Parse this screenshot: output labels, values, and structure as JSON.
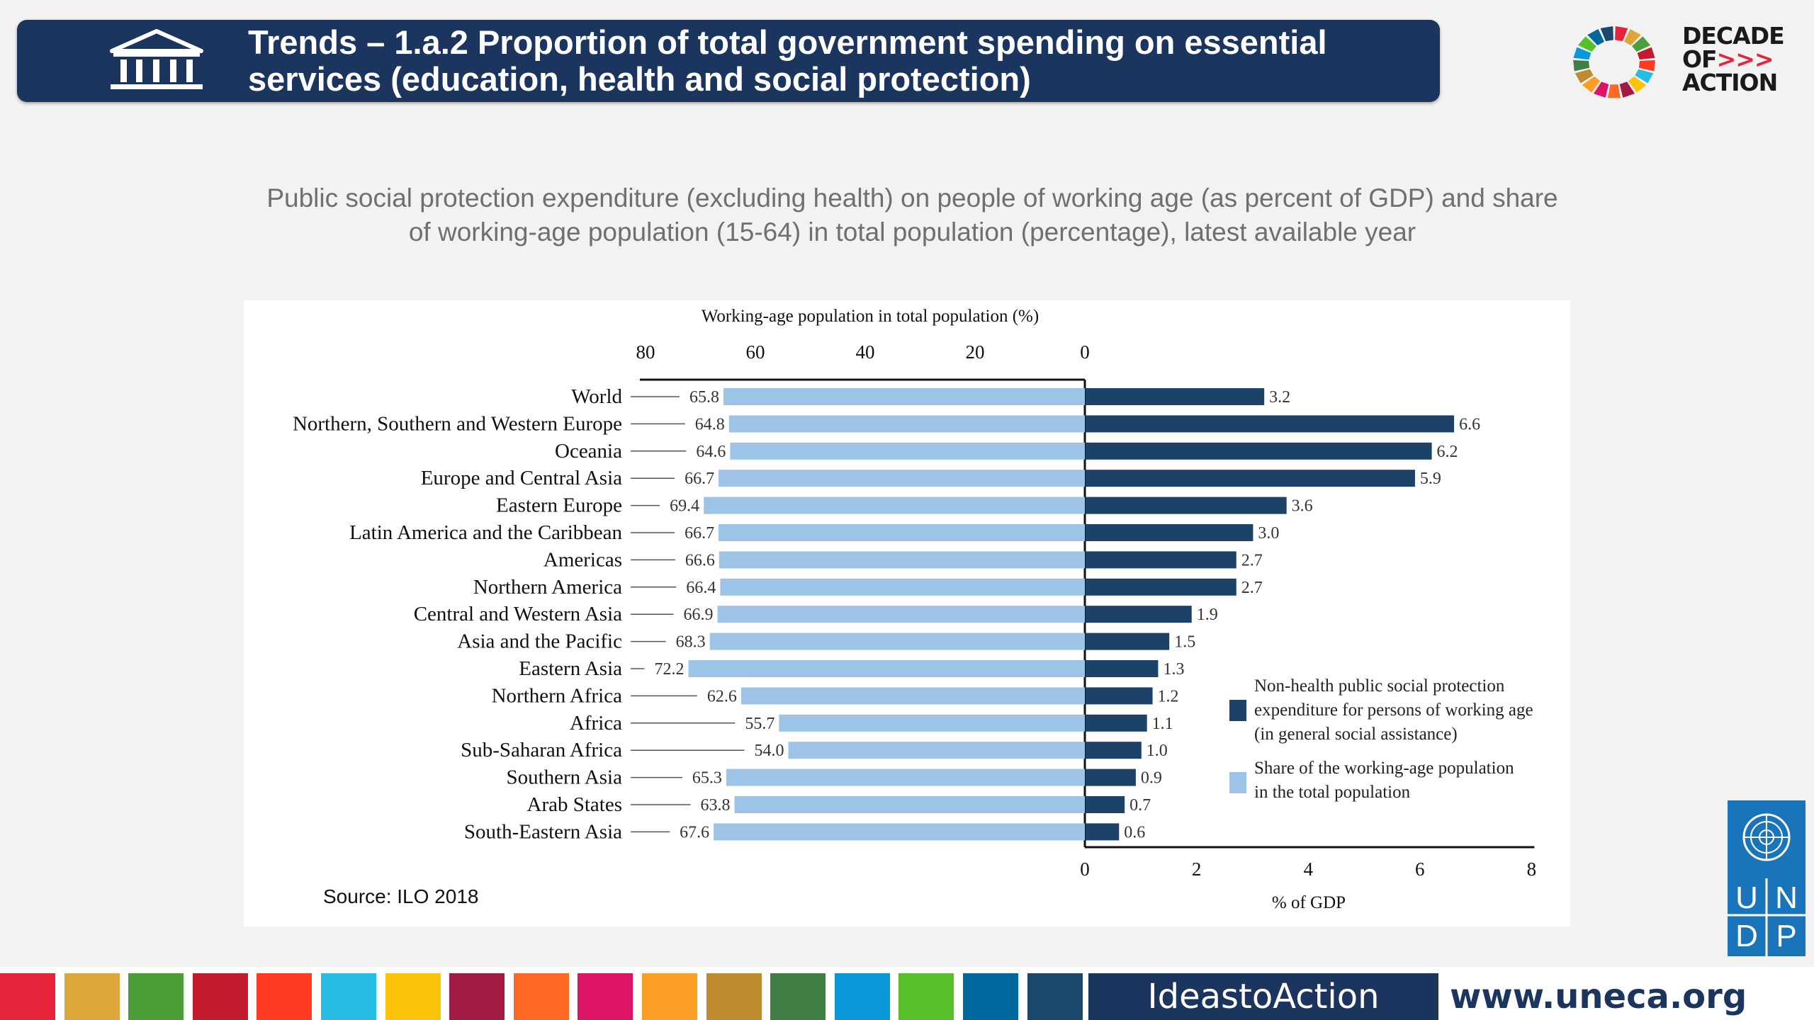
{
  "header": {
    "title_line1": "Trends – 1.a.2 Proportion of total government spending on essential",
    "title_line2": "services (education, health and social protection)",
    "icon": "bank-building-icon"
  },
  "logo": {
    "line1": "DECADE",
    "line2_text": "OF",
    "line2_arrows": ">>>",
    "line3": "ACTION",
    "ring_colors": [
      "#e5243b",
      "#dda63a",
      "#4c9f38",
      "#c5192d",
      "#ff3a21",
      "#26bde2",
      "#fcc30b",
      "#a21942",
      "#fd6925",
      "#dd1367",
      "#fd9d24",
      "#bf8b2e",
      "#3f7e44",
      "#0a97d9",
      "#56c02b",
      "#00689d",
      "#19486a"
    ]
  },
  "subtitle": {
    "line1": "Public social protection expenditure (excluding health) on people of working age (as percent of GDP) and share",
    "line2": "of working-age population (15-64) in total population (percentage), latest available year"
  },
  "chart_data": {
    "type": "bar",
    "orientation": "horizontal-butterfly",
    "categories": [
      "World",
      "Northern, Southern and Western Europe",
      "Oceania",
      "Europe and Central Asia",
      "Eastern Europe",
      "Latin America and the Caribbean",
      "Americas",
      "Northern America",
      "Central and Western Asia",
      "Asia and the Pacific",
      "Eastern Asia",
      "Northern Africa",
      "Africa",
      "Sub-Saharan Africa",
      "Southern Asia",
      "Arab States",
      "South-Eastern Asia"
    ],
    "series": [
      {
        "name": "Share of the working-age population in the total population",
        "color": "#9dc3e6",
        "values": [
          65.8,
          64.8,
          64.6,
          66.7,
          69.4,
          66.7,
          66.6,
          66.4,
          66.9,
          68.3,
          72.2,
          62.6,
          55.7,
          54.0,
          65.3,
          63.8,
          67.6
        ],
        "labels": [
          "65.8",
          "64.8",
          "64.6",
          "66.7",
          "69.4",
          "66.7",
          "66.6",
          "66.4",
          "66.9",
          "68.3",
          "72.2",
          "62.6",
          "55.7",
          "54.0",
          "65.3",
          "63.8",
          "67.6"
        ]
      },
      {
        "name": "Non-health public social protection expenditure for persons of working age (in general social assistance)",
        "color": "#1c4268",
        "values": [
          3.2,
          6.6,
          6.2,
          5.9,
          3.6,
          3.0,
          2.7,
          2.7,
          1.9,
          1.5,
          1.3,
          1.2,
          1.1,
          1.0,
          0.9,
          0.7,
          0.6
        ],
        "labels": [
          "3.2",
          "6.6",
          "6.2",
          "5.9",
          "3.6",
          "3.0",
          "2.7",
          "2.7",
          "1.9",
          "1.5",
          "1.3",
          "1.2",
          "1.1",
          "1.0",
          "0.9",
          "0.7",
          "0.6"
        ]
      }
    ],
    "left_axis": {
      "label": "Working-age population in total population (%)",
      "ticks": [
        "80",
        "60",
        "40",
        "20",
        "0"
      ],
      "range": [
        80,
        0
      ]
    },
    "right_axis": {
      "label": "% of GDP",
      "ticks": [
        "0",
        "2",
        "4",
        "6",
        "8"
      ],
      "range": [
        0,
        8
      ]
    },
    "legend": {
      "placement": "right-inside",
      "expenditure_lines": [
        "Non-health public social protection",
        "expenditure for persons of working age",
        "(in general social assistance)"
      ],
      "population_lines": [
        "Share of the working-age population",
        "in the total population"
      ]
    },
    "grid": false
  },
  "source_note": "Source: ILO 2018",
  "un_logo": {
    "letters": [
      "U",
      "N",
      "D",
      "P"
    ]
  },
  "footer": {
    "stripe_colors": [
      "#e5243b",
      "#dda63a",
      "#4c9f38",
      "#c5192d",
      "#ff3a21",
      "#26bde2",
      "#fcc30b",
      "#a21942",
      "#fd6925",
      "#dd1367",
      "#fd9d24",
      "#bf8b2e",
      "#3f7e44",
      "#0a97d9",
      "#56c02b",
      "#00689d",
      "#19486a"
    ],
    "ideas_label": "IdeastoAction",
    "url": "www.uneca.org"
  }
}
